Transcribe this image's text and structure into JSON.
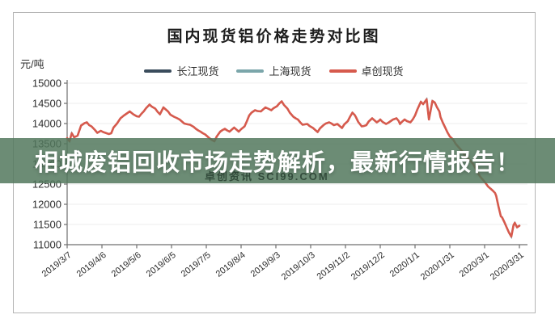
{
  "banner": {
    "text": "相城废铝回收市场走势解析，最新行情报告！",
    "bg_color": "rgba(82,120,93,0.85)",
    "text_color": "#ffffff"
  },
  "chart_data": {
    "type": "line",
    "title": "国内现货铝价格走势对比图",
    "unit": "元/吨",
    "watermark": "卓创资讯 SCI99.COM",
    "ylim": [
      11000,
      15000
    ],
    "yticks": [
      15000,
      14500,
      14000,
      13500,
      13000,
      12500,
      12000,
      11500,
      11000
    ],
    "categories": [
      "2019/3/7",
      "2019/4/6",
      "2019/5/6",
      "2019/6/5",
      "2019/7/5",
      "2019/8/4",
      "2019/9/3",
      "2019/10/3",
      "2019/11/2",
      "2019/12/2",
      "2020/1/1",
      "2020/1/31",
      "2020/3/1",
      "2020/3/31"
    ],
    "x_tick_interval_days": 30,
    "x_total_days": 390,
    "grid": "faint horizontal gridlines",
    "legend_position": "top-center",
    "axis_color": "#6f6f6f",
    "series": [
      {
        "name": "长江现货",
        "color": "#3a4c5c",
        "note": "curve overlapped / hidden behind 卓创现货 line"
      },
      {
        "name": "上海现货",
        "color": "#7ba6aa",
        "note": "curve overlapped / hidden behind 卓创现货 line"
      },
      {
        "name": "卓创现货",
        "color": "#d65a4d",
        "points": [
          [
            0,
            13640
          ],
          [
            2,
            13560
          ],
          [
            4,
            13760
          ],
          [
            6,
            13660
          ],
          [
            9,
            13700
          ],
          [
            12,
            13950
          ],
          [
            15,
            14010
          ],
          [
            17,
            14030
          ],
          [
            19,
            13960
          ],
          [
            21,
            13930
          ],
          [
            24,
            13840
          ],
          [
            26,
            13770
          ],
          [
            29,
            13820
          ],
          [
            31,
            13790
          ],
          [
            34,
            13760
          ],
          [
            36,
            13740
          ],
          [
            38,
            13760
          ],
          [
            40,
            13900
          ],
          [
            43,
            14000
          ],
          [
            46,
            14130
          ],
          [
            49,
            14200
          ],
          [
            52,
            14260
          ],
          [
            54,
            14300
          ],
          [
            57,
            14230
          ],
          [
            60,
            14180
          ],
          [
            62,
            14170
          ],
          [
            64,
            14240
          ],
          [
            66,
            14300
          ],
          [
            68,
            14380
          ],
          [
            71,
            14470
          ],
          [
            73,
            14420
          ],
          [
            76,
            14370
          ],
          [
            78,
            14290
          ],
          [
            80,
            14230
          ],
          [
            83,
            14400
          ],
          [
            85,
            14350
          ],
          [
            87,
            14300
          ],
          [
            89,
            14220
          ],
          [
            92,
            14170
          ],
          [
            95,
            14130
          ],
          [
            97,
            14100
          ],
          [
            99,
            14050
          ],
          [
            101,
            14000
          ],
          [
            104,
            13980
          ],
          [
            106,
            13970
          ],
          [
            109,
            13920
          ],
          [
            111,
            13870
          ],
          [
            113,
            13830
          ],
          [
            115,
            13800
          ],
          [
            117,
            13760
          ],
          [
            119,
            13730
          ],
          [
            121,
            13680
          ],
          [
            123,
            13630
          ],
          [
            125,
            13590
          ],
          [
            127,
            13560
          ],
          [
            129,
            13680
          ],
          [
            132,
            13800
          ],
          [
            134,
            13840
          ],
          [
            136,
            13870
          ],
          [
            138,
            13830
          ],
          [
            140,
            13800
          ],
          [
            142,
            13850
          ],
          [
            144,
            13900
          ],
          [
            146,
            13850
          ],
          [
            148,
            13800
          ],
          [
            150,
            13860
          ],
          [
            153,
            13930
          ],
          [
            155,
            14060
          ],
          [
            157,
            14200
          ],
          [
            159,
            14270
          ],
          [
            162,
            14330
          ],
          [
            164,
            14310
          ],
          [
            167,
            14300
          ],
          [
            169,
            14350
          ],
          [
            171,
            14400
          ],
          [
            174,
            14360
          ],
          [
            176,
            14330
          ],
          [
            178,
            14380
          ],
          [
            181,
            14430
          ],
          [
            183,
            14500
          ],
          [
            185,
            14550
          ],
          [
            187,
            14460
          ],
          [
            190,
            14370
          ],
          [
            192,
            14270
          ],
          [
            195,
            14170
          ],
          [
            197,
            14130
          ],
          [
            199,
            14100
          ],
          [
            201,
            14030
          ],
          [
            203,
            13970
          ],
          [
            205,
            13980
          ],
          [
            207,
            13990
          ],
          [
            209,
            13940
          ],
          [
            212,
            13890
          ],
          [
            214,
            13840
          ],
          [
            216,
            13790
          ],
          [
            218,
            13880
          ],
          [
            221,
            13960
          ],
          [
            223,
            14000
          ],
          [
            226,
            14030
          ],
          [
            228,
            14000
          ],
          [
            230,
            13960
          ],
          [
            233,
            13990
          ],
          [
            235,
            13940
          ],
          [
            237,
            13890
          ],
          [
            239,
            13980
          ],
          [
            242,
            14060
          ],
          [
            244,
            14170
          ],
          [
            246,
            14270
          ],
          [
            248,
            14210
          ],
          [
            249,
            14160
          ],
          [
            251,
            14040
          ],
          [
            254,
            13930
          ],
          [
            256,
            13940
          ],
          [
            258,
            13960
          ],
          [
            260,
            14050
          ],
          [
            263,
            14130
          ],
          [
            265,
            14080
          ],
          [
            267,
            14030
          ],
          [
            269,
            14070
          ],
          [
            270,
            14100
          ],
          [
            272,
            14040
          ],
          [
            275,
            13990
          ],
          [
            277,
            14020
          ],
          [
            279,
            14060
          ],
          [
            281,
            14100
          ],
          [
            284,
            14130
          ],
          [
            286,
            14060
          ],
          [
            287,
            13990
          ],
          [
            289,
            14050
          ],
          [
            291,
            14100
          ],
          [
            293,
            14060
          ],
          [
            296,
            14030
          ],
          [
            298,
            14100
          ],
          [
            300,
            14200
          ],
          [
            302,
            14350
          ],
          [
            305,
            14540
          ],
          [
            307,
            14480
          ],
          [
            308,
            14520
          ],
          [
            310,
            14600
          ],
          [
            312,
            14100
          ],
          [
            315,
            14560
          ],
          [
            317,
            14520
          ],
          [
            319,
            14400
          ],
          [
            321,
            14300
          ],
          [
            322,
            14160
          ],
          [
            324,
            14020
          ],
          [
            326,
            13900
          ],
          [
            328,
            13780
          ],
          [
            330,
            13680
          ],
          [
            333,
            13600
          ],
          [
            335,
            13500
          ],
          [
            338,
            13400
          ],
          [
            341,
            13300
          ],
          [
            343,
            13200
          ],
          [
            345,
            13150
          ],
          [
            347,
            13100
          ],
          [
            350,
            13000
          ],
          [
            352,
            12900
          ],
          [
            354,
            12790
          ],
          [
            356,
            12690
          ],
          [
            359,
            12590
          ],
          [
            361,
            12520
          ],
          [
            363,
            12440
          ],
          [
            365,
            12390
          ],
          [
            367,
            12340
          ],
          [
            369,
            12280
          ],
          [
            370,
            12210
          ],
          [
            372,
            11940
          ],
          [
            374,
            11700
          ],
          [
            375,
            11680
          ],
          [
            377,
            11560
          ],
          [
            379,
            11430
          ],
          [
            381,
            11300
          ],
          [
            383,
            11200
          ],
          [
            385,
            11490
          ],
          [
            386,
            11540
          ],
          [
            388,
            11430
          ],
          [
            390,
            11470
          ]
        ]
      }
    ]
  }
}
